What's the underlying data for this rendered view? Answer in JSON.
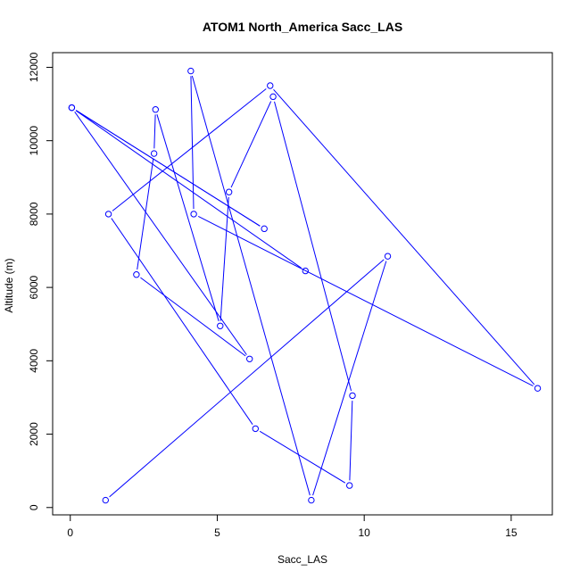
{
  "chart_data": {
    "type": "line",
    "title": "ATOM1 North_America Sacc_LAS",
    "xlabel": "Sacc_LAS",
    "ylabel": "Altitude (m)",
    "xlim": [
      -0.6,
      16.4
    ],
    "ylim": [
      -200,
      12400
    ],
    "xticks": [
      0,
      5,
      10,
      15
    ],
    "yticks": [
      0,
      2000,
      4000,
      6000,
      8000,
      10000,
      12000
    ],
    "series": [
      {
        "color": "#0000ff",
        "marker": "open-circle",
        "points": [
          {
            "x": 1.2,
            "y": 200
          },
          {
            "x": 10.8,
            "y": 6850
          },
          {
            "x": 8.2,
            "y": 200
          },
          {
            "x": 4.1,
            "y": 11900
          },
          {
            "x": 4.2,
            "y": 8000
          },
          {
            "x": 15.9,
            "y": 3250
          },
          {
            "x": 6.8,
            "y": 11500
          },
          {
            "x": 1.3,
            "y": 8000
          },
          {
            "x": 6.3,
            "y": 2150
          },
          {
            "x": 9.5,
            "y": 600
          },
          {
            "x": 9.6,
            "y": 3050
          },
          {
            "x": 6.9,
            "y": 11200
          },
          {
            "x": 5.4,
            "y": 8600
          },
          {
            "x": 5.1,
            "y": 4950
          },
          {
            "x": 2.9,
            "y": 10850
          },
          {
            "x": 2.85,
            "y": 9650
          },
          {
            "x": 2.25,
            "y": 6350
          },
          {
            "x": 6.1,
            "y": 4050
          },
          {
            "x": 0.05,
            "y": 10900
          },
          {
            "x": 6.6,
            "y": 7600
          },
          {
            "x": 0.05,
            "y": 10900
          },
          {
            "x": 8.0,
            "y": 6450
          }
        ]
      }
    ],
    "grid": false,
    "legend": "none"
  }
}
